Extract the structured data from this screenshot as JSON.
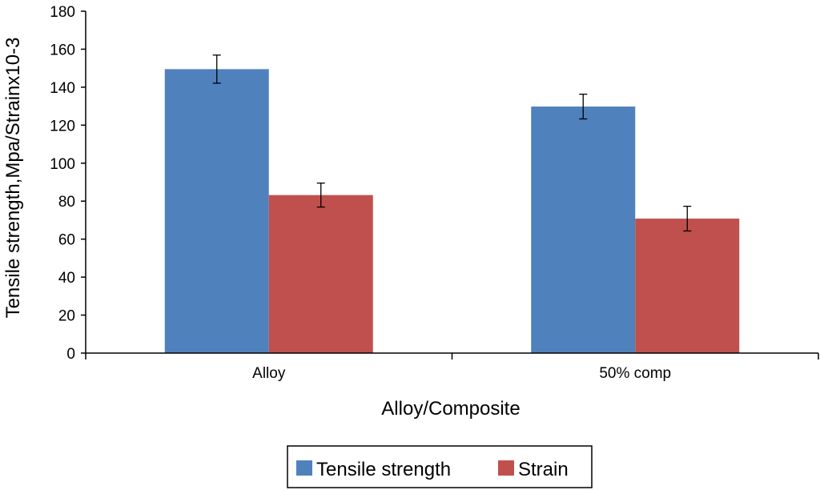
{
  "chart_data": {
    "type": "bar",
    "title": "",
    "xlabel": "Alloy/Composite",
    "ylabel": "Tensile strength,Mpa/Strainx10-3",
    "ylim": [
      0,
      180
    ],
    "ytick_step": 20,
    "categories": [
      "Alloy",
      "50% comp"
    ],
    "series": [
      {
        "name": "Tensile strength",
        "color": "#4f81bd",
        "values": [
          149.5,
          129.8
        ],
        "errors": [
          7.4,
          6.5
        ]
      },
      {
        "name": "Strain",
        "color": "#c0504d",
        "values": [
          83.2,
          70.8
        ],
        "errors": [
          6.3,
          6.5
        ]
      }
    ],
    "legend_position": "bottom-center",
    "grid": false
  }
}
